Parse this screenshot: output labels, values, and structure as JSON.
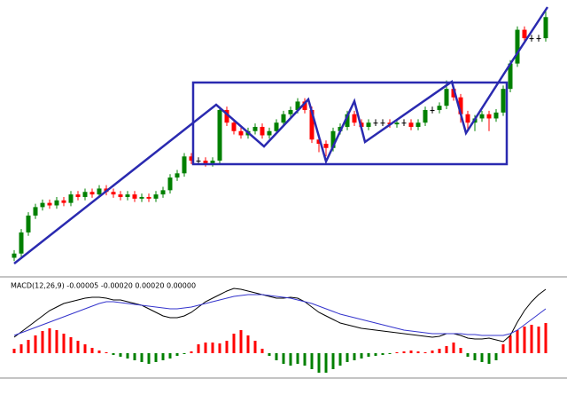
{
  "chart_data": [
    {
      "type": "candlestick",
      "up_color": "#008000",
      "down_color": "#ff0000",
      "flat_color": "#000000",
      "ylim": [
        -10,
        300
      ],
      "open": [
        0,
        5,
        30,
        50,
        60,
        65,
        62,
        68,
        65,
        75,
        72,
        78,
        75,
        82,
        78,
        75,
        72,
        75,
        70,
        72,
        70,
        75,
        80,
        95,
        100,
        120,
        115,
        115,
        112,
        115,
        175,
        160,
        150,
        145,
        150,
        155,
        145,
        150,
        160,
        170,
        175,
        185,
        175,
        140,
        135,
        130,
        150,
        155,
        170,
        160,
        155,
        160,
        160,
        160,
        158,
        160,
        160,
        155,
        160,
        175,
        175,
        180,
        200,
        190,
        170,
        160,
        165,
        170,
        165,
        172,
        200,
        230,
        270,
        260,
        260,
        260
      ],
      "high": [
        9,
        34,
        54,
        64,
        69,
        69,
        72,
        72,
        79,
        79,
        82,
        82,
        86,
        86,
        82,
        79,
        79,
        79,
        76,
        76,
        79,
        84,
        99,
        104,
        124,
        124,
        119,
        119,
        119,
        179,
        179,
        164,
        154,
        154,
        159,
        159,
        154,
        164,
        174,
        179,
        189,
        189,
        179,
        144,
        139,
        154,
        159,
        174,
        174,
        164,
        164,
        164,
        164,
        164,
        164,
        164,
        164,
        164,
        179,
        179,
        184,
        210,
        204,
        194,
        174,
        169,
        174,
        174,
        176,
        204,
        234,
        274,
        274,
        264,
        264,
        292
      ],
      "low": [
        -4,
        1,
        26,
        46,
        56,
        58,
        58,
        61,
        61,
        68,
        68,
        71,
        71,
        74,
        71,
        68,
        68,
        66,
        66,
        66,
        66,
        71,
        76,
        91,
        96,
        111,
        111,
        108,
        108,
        111,
        156,
        146,
        141,
        141,
        146,
        141,
        141,
        146,
        156,
        166,
        171,
        171,
        136,
        125,
        120,
        126,
        146,
        151,
        156,
        151,
        151,
        156,
        156,
        154,
        154,
        156,
        151,
        151,
        156,
        171,
        171,
        176,
        186,
        160,
        150,
        150,
        161,
        150,
        161,
        168,
        196,
        226,
        256,
        256,
        256,
        256
      ],
      "close": [
        5,
        30,
        50,
        60,
        65,
        62,
        68,
        65,
        75,
        72,
        78,
        75,
        82,
        78,
        75,
        72,
        75,
        70,
        72,
        70,
        75,
        80,
        95,
        100,
        120,
        115,
        115,
        112,
        115,
        175,
        160,
        150,
        145,
        150,
        155,
        145,
        150,
        160,
        170,
        175,
        185,
        175,
        140,
        135,
        130,
        150,
        155,
        170,
        160,
        155,
        160,
        160,
        160,
        158,
        160,
        160,
        155,
        160,
        175,
        175,
        180,
        200,
        190,
        170,
        160,
        165,
        170,
        165,
        172,
        200,
        230,
        270,
        260,
        260,
        260,
        285
      ]
    },
    {
      "type": "macd",
      "title": "MACD(12,26,9) -0.00005 -0.00020 0.00020 0.00000",
      "ylim": [
        -0.00026,
        0.00076
      ],
      "histogram": {
        "up_color": "#ff0000",
        "down_color": "#008000",
        "values": [
          5e-05,
          0.0001,
          0.00015,
          0.0002,
          0.00025,
          0.00028,
          0.00026,
          0.00022,
          0.00018,
          0.00014,
          0.0001,
          6e-05,
          3e-05,
          1e-05,
          -2e-05,
          -4e-05,
          -6e-05,
          -8e-05,
          -0.0001,
          -0.00012,
          -0.0001,
          -8e-05,
          -6e-05,
          -3e-05,
          -1e-05,
          2e-05,
          0.0001,
          0.00012,
          0.00012,
          0.00011,
          0.00014,
          0.00022,
          0.00026,
          0.0002,
          0.00014,
          5e-05,
          -3e-05,
          -8e-05,
          -0.00012,
          -0.00014,
          -0.00012,
          -0.00014,
          -0.00018,
          -0.00022,
          -0.00022,
          -0.00018,
          -0.00014,
          -0.0001,
          -8e-05,
          -6e-05,
          -4e-05,
          -3e-05,
          -2e-05,
          -1e-05,
          1e-05,
          2e-05,
          3e-05,
          2e-05,
          1e-05,
          3e-05,
          5e-05,
          8e-05,
          0.00012,
          6e-05,
          -4e-05,
          -8e-05,
          -0.0001,
          -0.00012,
          -8e-05,
          0.0001,
          0.0002,
          0.00026,
          0.0003,
          0.00032,
          0.0003,
          0.00034
        ]
      },
      "lines": [
        {
          "color": "#000000",
          "values": [
            0.00018,
            0.00024,
            0.0003,
            0.00036,
            0.00042,
            0.00048,
            0.00052,
            0.00056,
            0.00058,
            0.0006,
            0.00062,
            0.00063,
            0.00063,
            0.00062,
            0.0006,
            0.0006,
            0.00058,
            0.00056,
            0.00054,
            0.0005,
            0.00046,
            0.00042,
            0.0004,
            0.0004,
            0.00042,
            0.00046,
            0.00052,
            0.00058,
            0.00062,
            0.00066,
            0.0007,
            0.00073,
            0.00072,
            0.0007,
            0.00068,
            0.00066,
            0.00064,
            0.00062,
            0.00062,
            0.00063,
            0.00062,
            0.00058,
            0.00052,
            0.00046,
            0.00042,
            0.00038,
            0.00034,
            0.00032,
            0.0003,
            0.00028,
            0.00027,
            0.00026,
            0.00025,
            0.00024,
            0.00023,
            0.00022,
            0.00021,
            0.0002,
            0.00019,
            0.00018,
            0.00019,
            0.00022,
            0.00022,
            0.0002,
            0.00017,
            0.00016,
            0.00016,
            0.00017,
            0.00015,
            0.00013,
            0.0002,
            0.00035,
            0.00048,
            0.00058,
            0.00066,
            0.00072
          ]
        },
        {
          "color": "#3333cc",
          "values": [
            0.0002,
            0.00023,
            0.00026,
            0.00029,
            0.00032,
            0.00035,
            0.00038,
            0.00041,
            0.00044,
            0.00047,
            0.0005,
            0.00053,
            0.00056,
            0.00058,
            0.00058,
            0.00057,
            0.00056,
            0.00055,
            0.00054,
            0.00053,
            0.00052,
            0.00051,
            0.0005,
            0.0005,
            0.00051,
            0.00052,
            0.00054,
            0.00056,
            0.00058,
            0.0006,
            0.00062,
            0.00064,
            0.00065,
            0.00066,
            0.00066,
            0.00066,
            0.00065,
            0.00064,
            0.00063,
            0.00062,
            0.0006,
            0.00058,
            0.00056,
            0.00053,
            0.0005,
            0.00047,
            0.00044,
            0.00042,
            0.0004,
            0.00038,
            0.00036,
            0.00034,
            0.00032,
            0.0003,
            0.00028,
            0.00026,
            0.00025,
            0.00024,
            0.00023,
            0.00022,
            0.00022,
            0.00022,
            0.00022,
            0.00022,
            0.00021,
            0.00021,
            0.0002,
            0.0002,
            0.0002,
            0.0002,
            0.00022,
            0.00026,
            0.00032,
            0.00038,
            0.00044,
            0.0005
          ]
        }
      ]
    }
  ]
}
